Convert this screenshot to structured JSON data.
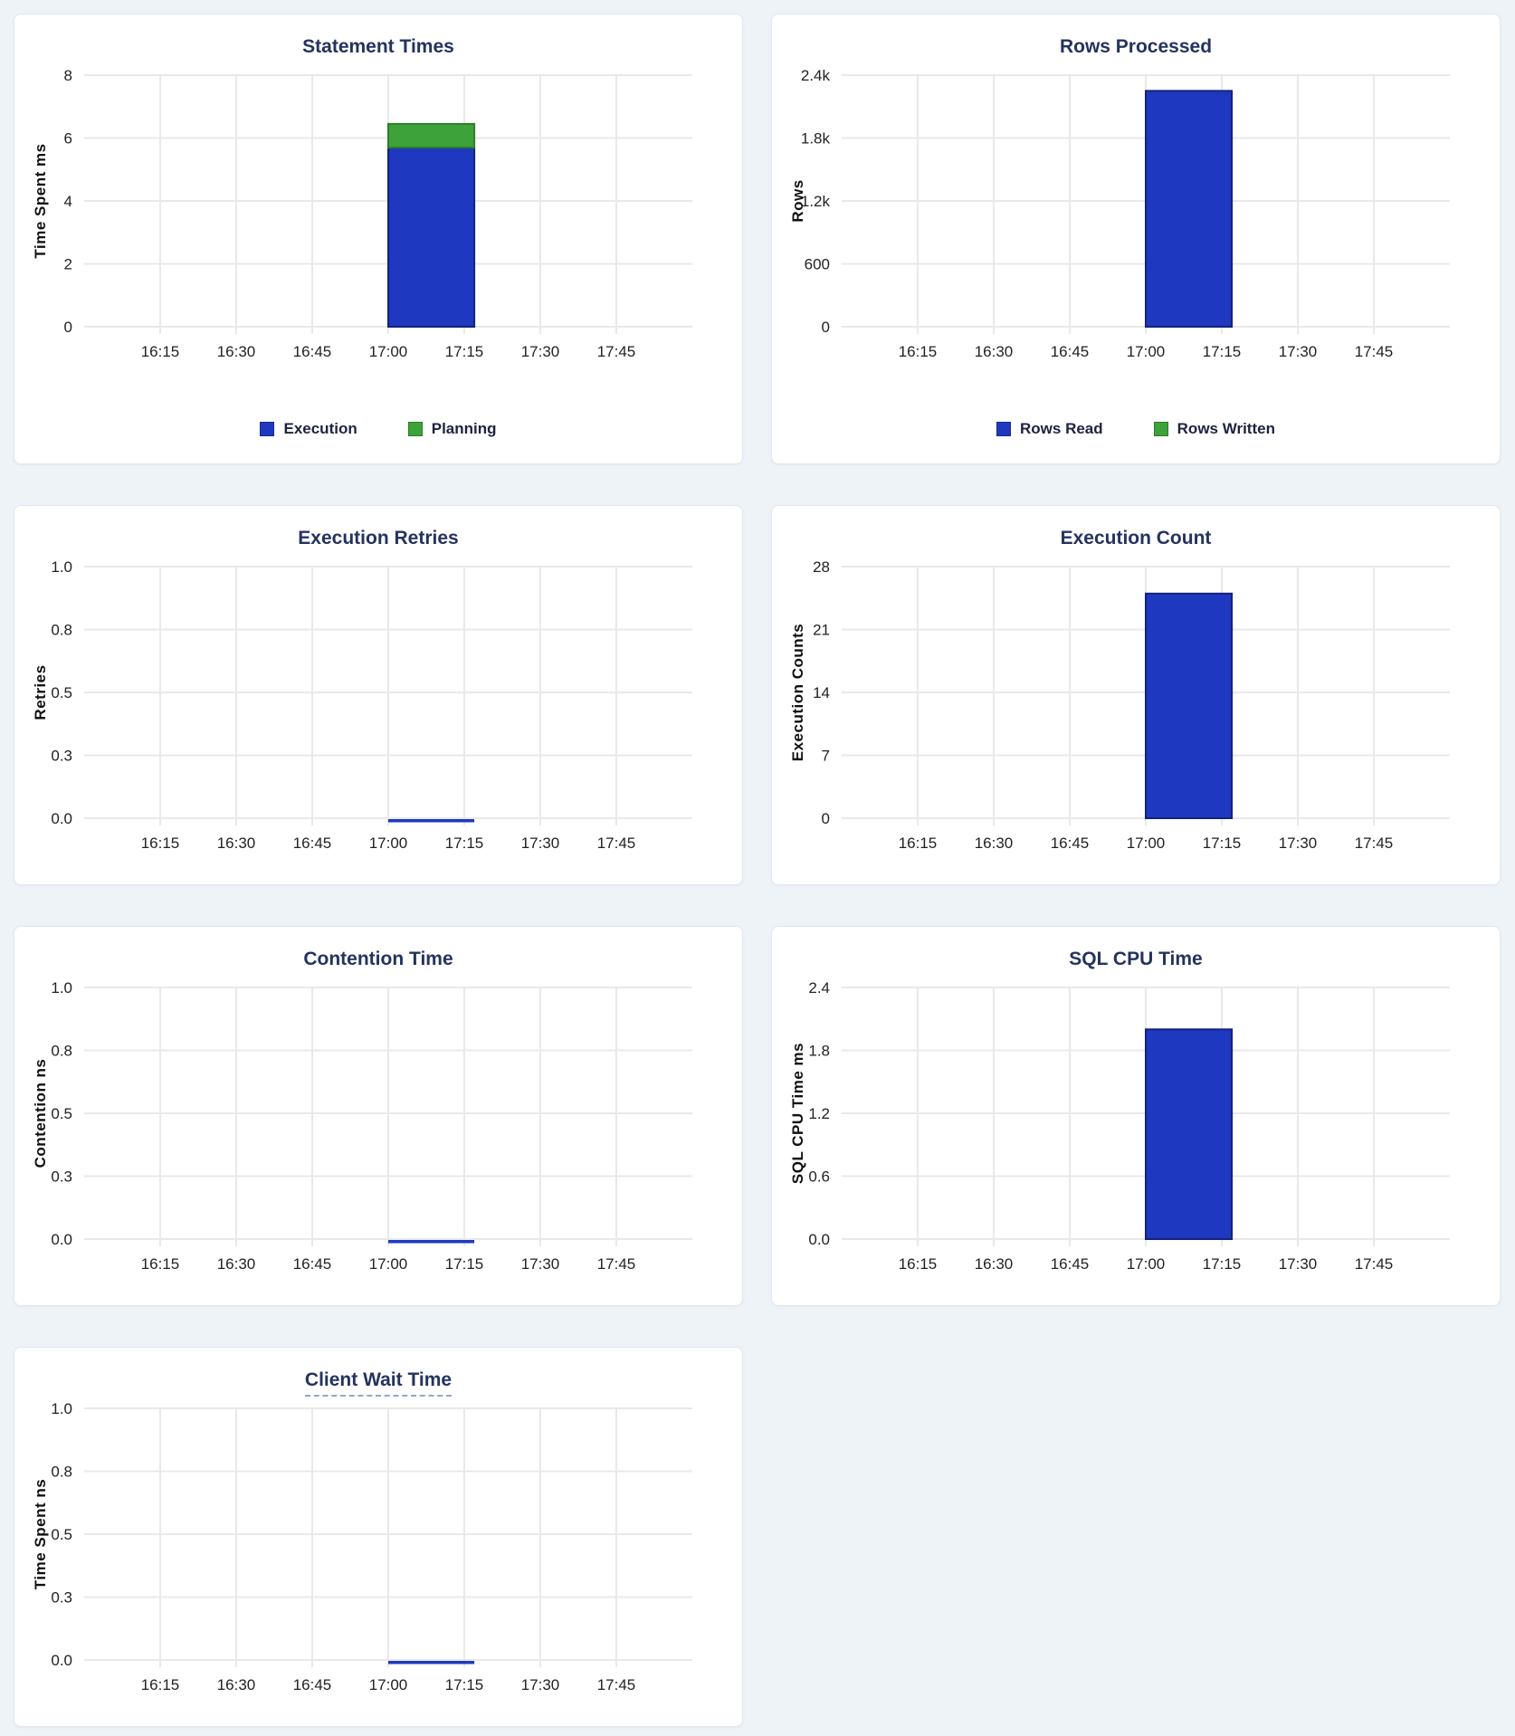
{
  "colors": {
    "page_bg": "#eef3f8",
    "bar_blue": "#1e39bf",
    "bar_blue_stroke": "#13227f",
    "bar_green": "#3ea23a",
    "bar_green_stroke": "#2c7f27",
    "title": "#24335f",
    "grid": "#e9e9e9",
    "tick_text": "#222222",
    "axis_label": "#111111"
  },
  "chart_data": [
    {
      "type": "bar",
      "title": "Statement Times",
      "ylabel": "Time Spent ms",
      "ylim": [
        0,
        8
      ],
      "y_ticks": [
        {
          "value": 0,
          "label": "0"
        },
        {
          "value": 2,
          "label": "2"
        },
        {
          "value": 4,
          "label": "4"
        },
        {
          "value": 6,
          "label": "6"
        },
        {
          "value": 8,
          "label": "8"
        }
      ],
      "x_domain": [
        16,
        18
      ],
      "x_ticks": [
        {
          "value": 16.25,
          "label": "16:15"
        },
        {
          "value": 16.5,
          "label": "16:30"
        },
        {
          "value": 16.75,
          "label": "16:45"
        },
        {
          "value": 17,
          "label": "17:00"
        },
        {
          "value": 17.25,
          "label": "17:15"
        },
        {
          "value": 17.5,
          "label": "17:30"
        },
        {
          "value": 17.75,
          "label": "17:45"
        }
      ],
      "bar_x": [
        17.0,
        17.283
      ],
      "stacked": true,
      "zero_line": false,
      "legend_visible": true,
      "series": [
        {
          "name": "Execution",
          "value": 5.7,
          "color": "#1e39bf",
          "stroke": "#13227f"
        },
        {
          "name": "Planning",
          "value": 0.75,
          "color": "#3ea23a",
          "stroke": "#2c7f27"
        }
      ]
    },
    {
      "type": "bar",
      "title": "Rows Processed",
      "ylabel": "Rows",
      "ylim": [
        0,
        2400
      ],
      "y_ticks": [
        {
          "value": 0,
          "label": "0"
        },
        {
          "value": 600,
          "label": "600"
        },
        {
          "value": 1200,
          "label": "1.2k"
        },
        {
          "value": 1800,
          "label": "1.8k"
        },
        {
          "value": 2400,
          "label": "2.4k"
        }
      ],
      "x_domain": [
        16,
        18
      ],
      "x_ticks": [
        {
          "value": 16.25,
          "label": "16:15"
        },
        {
          "value": 16.5,
          "label": "16:30"
        },
        {
          "value": 16.75,
          "label": "16:45"
        },
        {
          "value": 17,
          "label": "17:00"
        },
        {
          "value": 17.25,
          "label": "17:15"
        },
        {
          "value": 17.5,
          "label": "17:30"
        },
        {
          "value": 17.75,
          "label": "17:45"
        }
      ],
      "bar_x": [
        17.0,
        17.283
      ],
      "stacked": true,
      "zero_line": false,
      "legend_visible": true,
      "series": [
        {
          "name": "Rows Read",
          "value": 2250,
          "color": "#1e39bf",
          "stroke": "#13227f"
        },
        {
          "name": "Rows Written",
          "value": 0,
          "color": "#3ea23a",
          "stroke": "#2c7f27"
        }
      ]
    },
    {
      "type": "line",
      "title": "Execution Retries",
      "ylabel": "Retries",
      "ylim": [
        0,
        1
      ],
      "y_ticks": [
        {
          "value": 0,
          "label": "0.0"
        },
        {
          "value": 0.25,
          "label": "0.3"
        },
        {
          "value": 0.5,
          "label": "0.5"
        },
        {
          "value": 0.75,
          "label": "0.8"
        },
        {
          "value": 1,
          "label": "1.0"
        }
      ],
      "x_domain": [
        16,
        18
      ],
      "x_ticks": [
        {
          "value": 16.25,
          "label": "16:15"
        },
        {
          "value": 16.5,
          "label": "16:30"
        },
        {
          "value": 16.75,
          "label": "16:45"
        },
        {
          "value": 17,
          "label": "17:00"
        },
        {
          "value": 17.25,
          "label": "17:15"
        },
        {
          "value": 17.5,
          "label": "17:30"
        },
        {
          "value": 17.75,
          "label": "17:45"
        }
      ],
      "bar_x": [
        17.0,
        17.283
      ],
      "stacked": false,
      "zero_line": true,
      "legend_visible": false,
      "series": [
        {
          "name": "Retries",
          "value": 0,
          "color": "#1e39bf",
          "stroke": "#13227f"
        }
      ]
    },
    {
      "type": "bar",
      "title": "Execution Count",
      "ylabel": "Execution Counts",
      "ylim": [
        0,
        28
      ],
      "y_ticks": [
        {
          "value": 0,
          "label": "0"
        },
        {
          "value": 7,
          "label": "7"
        },
        {
          "value": 14,
          "label": "14"
        },
        {
          "value": 21,
          "label": "21"
        },
        {
          "value": 28,
          "label": "28"
        }
      ],
      "x_domain": [
        16,
        18
      ],
      "x_ticks": [
        {
          "value": 16.25,
          "label": "16:15"
        },
        {
          "value": 16.5,
          "label": "16:30"
        },
        {
          "value": 16.75,
          "label": "16:45"
        },
        {
          "value": 17,
          "label": "17:00"
        },
        {
          "value": 17.25,
          "label": "17:15"
        },
        {
          "value": 17.5,
          "label": "17:30"
        },
        {
          "value": 17.75,
          "label": "17:45"
        }
      ],
      "bar_x": [
        17.0,
        17.283
      ],
      "stacked": false,
      "zero_line": false,
      "legend_visible": false,
      "series": [
        {
          "name": "Execution Count",
          "value": 25,
          "color": "#1e39bf",
          "stroke": "#13227f"
        }
      ]
    },
    {
      "type": "line",
      "title": "Contention Time",
      "ylabel": "Contention ns",
      "ylim": [
        0,
        1
      ],
      "y_ticks": [
        {
          "value": 0,
          "label": "0.0"
        },
        {
          "value": 0.25,
          "label": "0.3"
        },
        {
          "value": 0.5,
          "label": "0.5"
        },
        {
          "value": 0.75,
          "label": "0.8"
        },
        {
          "value": 1,
          "label": "1.0"
        }
      ],
      "x_domain": [
        16,
        18
      ],
      "x_ticks": [
        {
          "value": 16.25,
          "label": "16:15"
        },
        {
          "value": 16.5,
          "label": "16:30"
        },
        {
          "value": 16.75,
          "label": "16:45"
        },
        {
          "value": 17,
          "label": "17:00"
        },
        {
          "value": 17.25,
          "label": "17:15"
        },
        {
          "value": 17.5,
          "label": "17:30"
        },
        {
          "value": 17.75,
          "label": "17:45"
        }
      ],
      "bar_x": [
        17.0,
        17.283
      ],
      "stacked": false,
      "zero_line": true,
      "legend_visible": false,
      "series": [
        {
          "name": "Contention",
          "value": 0,
          "color": "#1e39bf",
          "stroke": "#13227f"
        }
      ]
    },
    {
      "type": "bar",
      "title": "SQL CPU Time",
      "ylabel": "SQL CPU Time ms",
      "ylim": [
        0,
        2.4
      ],
      "y_ticks": [
        {
          "value": 0,
          "label": "0.0"
        },
        {
          "value": 0.6,
          "label": "0.6"
        },
        {
          "value": 1.2,
          "label": "1.2"
        },
        {
          "value": 1.8,
          "label": "1.8"
        },
        {
          "value": 2.4,
          "label": "2.4"
        }
      ],
      "x_domain": [
        16,
        18
      ],
      "x_ticks": [
        {
          "value": 16.25,
          "label": "16:15"
        },
        {
          "value": 16.5,
          "label": "16:30"
        },
        {
          "value": 16.75,
          "label": "16:45"
        },
        {
          "value": 17,
          "label": "17:00"
        },
        {
          "value": 17.25,
          "label": "17:15"
        },
        {
          "value": 17.5,
          "label": "17:30"
        },
        {
          "value": 17.75,
          "label": "17:45"
        }
      ],
      "bar_x": [
        17.0,
        17.283
      ],
      "stacked": false,
      "zero_line": false,
      "legend_visible": false,
      "series": [
        {
          "name": "SQL CPU Time",
          "value": 2.0,
          "color": "#1e39bf",
          "stroke": "#13227f"
        }
      ]
    },
    {
      "type": "line",
      "title": "Client Wait Time",
      "ylabel": "Time Spent ns",
      "ylim": [
        0,
        1
      ],
      "y_ticks": [
        {
          "value": 0,
          "label": "0.0"
        },
        {
          "value": 0.25,
          "label": "0.3"
        },
        {
          "value": 0.5,
          "label": "0.5"
        },
        {
          "value": 0.75,
          "label": "0.8"
        },
        {
          "value": 1,
          "label": "1.0"
        }
      ],
      "x_domain": [
        16,
        18
      ],
      "x_ticks": [
        {
          "value": 16.25,
          "label": "16:15"
        },
        {
          "value": 16.5,
          "label": "16:30"
        },
        {
          "value": 16.75,
          "label": "16:45"
        },
        {
          "value": 17,
          "label": "17:00"
        },
        {
          "value": 17.25,
          "label": "17:15"
        },
        {
          "value": 17.5,
          "label": "17:30"
        },
        {
          "value": 17.75,
          "label": "17:45"
        }
      ],
      "bar_x": [
        17.0,
        17.283
      ],
      "stacked": false,
      "zero_line": true,
      "legend_visible": false,
      "series": [
        {
          "name": "Client Wait",
          "value": 0,
          "color": "#1e39bf",
          "stroke": "#13227f"
        }
      ]
    }
  ]
}
